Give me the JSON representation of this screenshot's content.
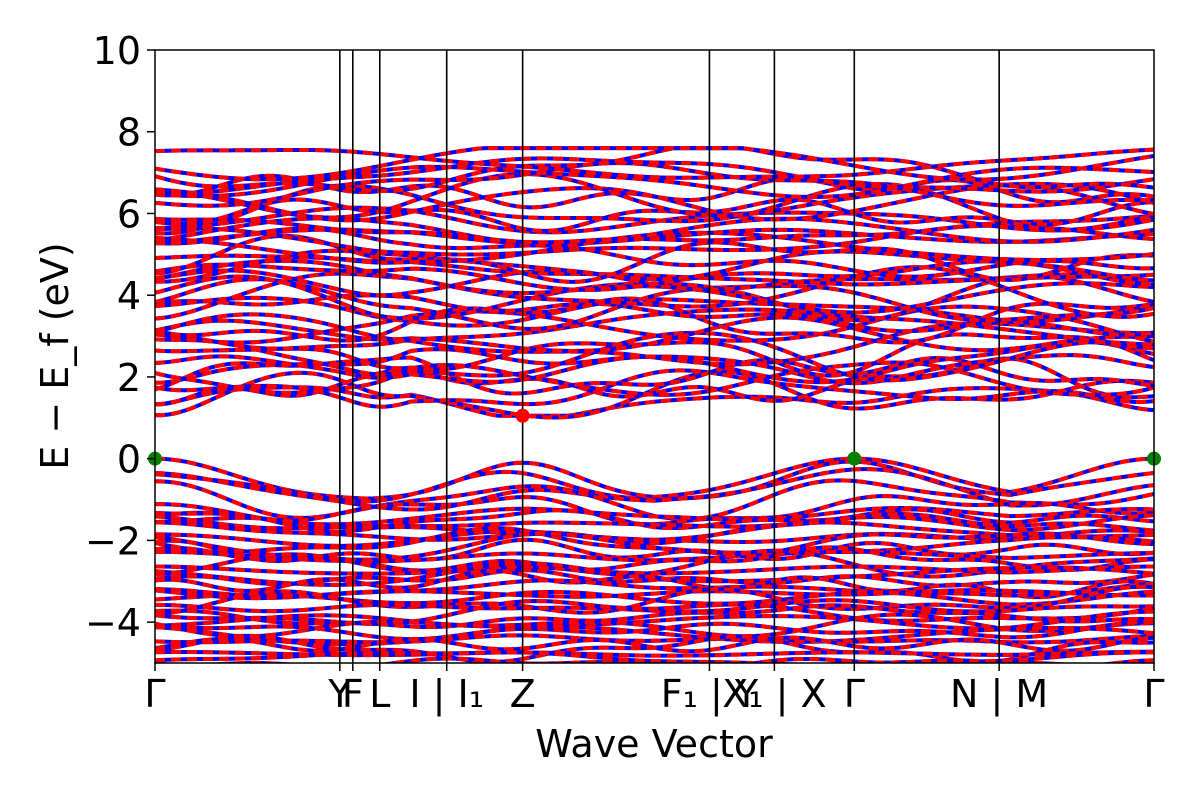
{
  "chart_data": {
    "type": "line",
    "xlabel": "Wave Vector",
    "ylabel": "E − E_f (eV)",
    "ylim": [
      -5,
      10
    ],
    "xlim": [
      0,
      1000
    ],
    "yticks": [
      -4,
      -2,
      0,
      2,
      4,
      6,
      8,
      10
    ],
    "ytick_labels": [
      "−4",
      "−2",
      "0",
      "2",
      "4",
      "6",
      "8",
      "10"
    ],
    "kpath_ticks": [
      {
        "x": 0,
        "label": "Γ"
      },
      {
        "x": 185,
        "label": "Y"
      },
      {
        "x": 198,
        "label": "F"
      },
      {
        "x": 225,
        "label": "L"
      },
      {
        "x": 292,
        "label": "I | I₁"
      },
      {
        "x": 368,
        "label": "Z"
      },
      {
        "x": 555,
        "label": "F₁ | Y"
      },
      {
        "x": 620,
        "label": "X₁ | X"
      },
      {
        "x": 700,
        "label": "Γ"
      },
      {
        "x": 845,
        "label": "N | M"
      },
      {
        "x": 1000,
        "label": "Γ"
      }
    ],
    "series": [
      {
        "color": "#0000ff",
        "style": "solid"
      },
      {
        "color": "#ff0000",
        "style": "dashed"
      }
    ],
    "band_extrema": {
      "vbm": [
        {
          "x": 0,
          "y": 0.0
        },
        {
          "x": 700,
          "y": 0.0
        },
        {
          "x": 1000,
          "y": 0.0
        }
      ],
      "cbm": [
        {
          "x": 368,
          "y": 1.05
        }
      ],
      "vbm_color": "#008000",
      "cbm_color": "#ff0000"
    },
    "band_ranges": {
      "valence": [
        -5,
        0
      ],
      "conduction": [
        1.05,
        7.6
      ]
    }
  }
}
